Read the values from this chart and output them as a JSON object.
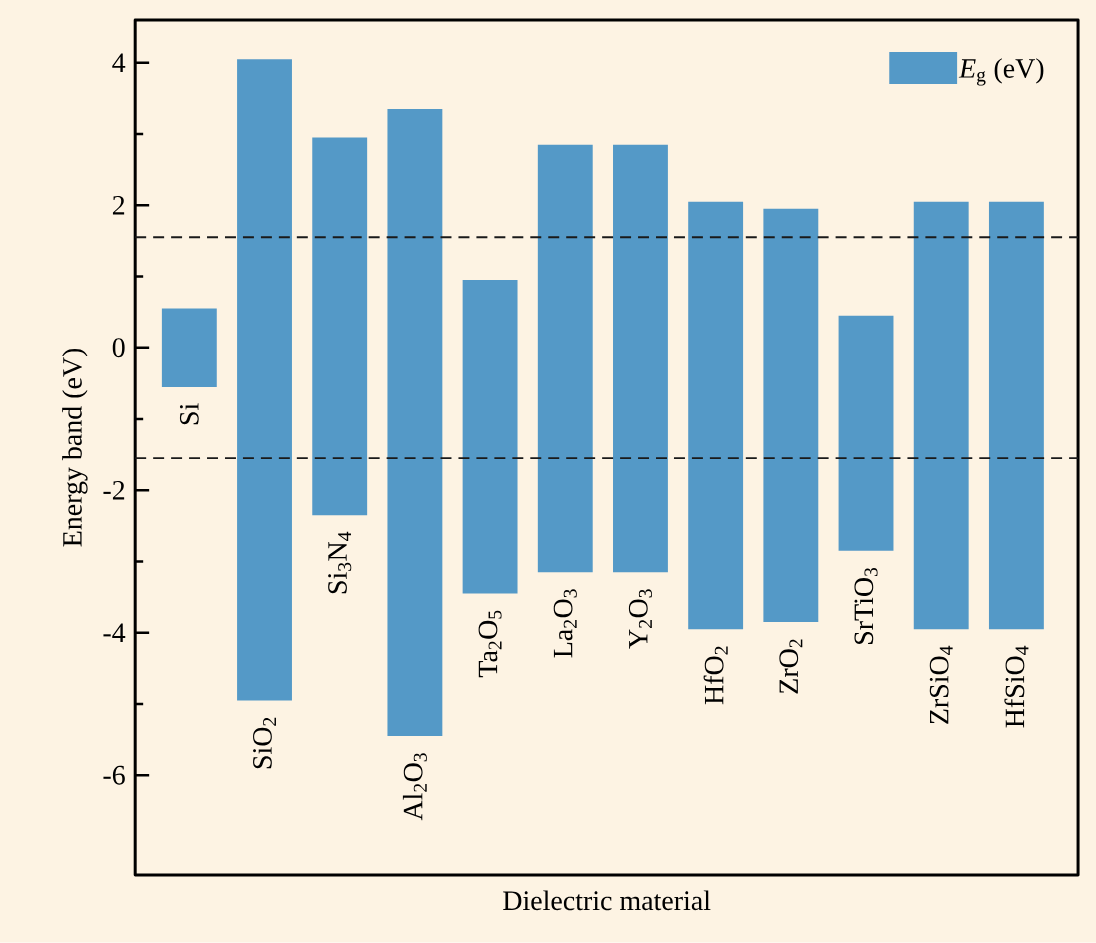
{
  "chart_data": {
    "type": "bar",
    "xlabel": "Dielectric material",
    "ylabel": "Energy band (eV)",
    "categories": [
      "Si",
      "SiO$_{2}$",
      "Si$_{3}$N$_{4}$",
      "Al$_{2}$O$_{3}$",
      "Ta$_{2}$O$_{5}$",
      "La$_{2}$O$_{3}$",
      "Y$_{2}$O$_{3}$",
      "HfO$_{2}$",
      "ZrO$_{2}$",
      "SrTiO$_{3}$",
      "ZrSiO$_{4}$",
      "HfSiO$_{4}$"
    ],
    "series": [
      {
        "name": "*E*$_{g}$ (eV)",
        "color": "#5499c7",
        "values": [
          1.1,
          9.0,
          5.3,
          8.8,
          4.4,
          6.0,
          6.0,
          6.0,
          5.8,
          3.3,
          6.0,
          6.0
        ],
        "base": [
          -0.55,
          -4.95,
          -2.35,
          -5.45,
          -3.45,
          -3.15,
          -3.15,
          -3.95,
          -3.85,
          -2.85,
          -3.95,
          -3.95
        ]
      }
    ],
    "ylim": [
      -7.4,
      4.6
    ],
    "yticks": [
      -6,
      -4,
      -2,
      0,
      2,
      4
    ],
    "ref_lines": [
      {
        "axis": "y",
        "value": 1.55,
        "line_style": "dashed",
        "color": "#1a1a1a"
      },
      {
        "axis": "y",
        "value": -1.55,
        "line_style": "dashed",
        "color": "#1a1a1a"
      }
    ],
    "legend": "top right",
    "grid": false
  }
}
